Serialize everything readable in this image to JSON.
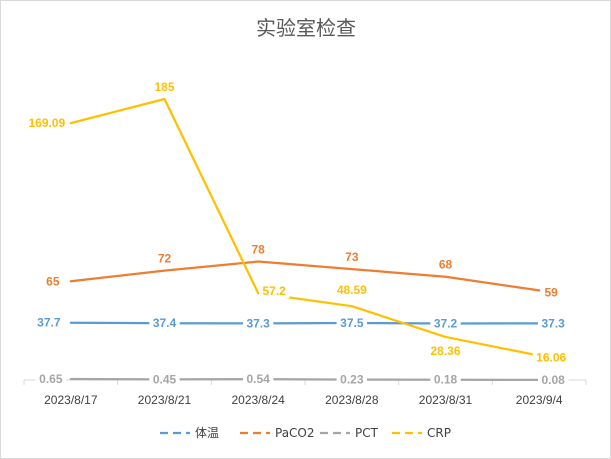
{
  "chart_data": {
    "type": "line",
    "title": "实验室检查",
    "categories": [
      "2023/8/17",
      "2023/8/21",
      "2023/8/24",
      "2023/8/28",
      "2023/8/31",
      "2023/9/4"
    ],
    "y_range": [
      0,
      210
    ],
    "grid": false,
    "legend_position": "bottom",
    "series": [
      {
        "name": "体温",
        "color": "#5b9bd5",
        "values": [
          37.7,
          37.4,
          37.3,
          37.5,
          37.2,
          37.3
        ],
        "labels": [
          "37.7",
          "37.4",
          "37.3",
          "37.5",
          "37.2",
          "37.3"
        ]
      },
      {
        "name": "PaCO2",
        "color": "#ed7d31",
        "values": [
          65,
          72,
          78,
          73,
          68,
          59
        ],
        "labels": [
          "65",
          "72",
          "78",
          "73",
          "68",
          "59"
        ]
      },
      {
        "name": "PCT",
        "color": "#a5a5a5",
        "values": [
          0.65,
          0.45,
          0.54,
          0.23,
          0.18,
          0.08
        ],
        "labels": [
          "0.65",
          "0.45",
          "0.54",
          "0.23",
          "0.18",
          "0.08"
        ]
      },
      {
        "name": "CRP",
        "color": "#ffc000",
        "values": [
          169.09,
          185,
          57.2,
          48.59,
          28.36,
          16.06
        ],
        "labels": [
          "169.09",
          "185",
          "57.2",
          "48.59",
          "28.36",
          "16.06"
        ]
      }
    ]
  }
}
